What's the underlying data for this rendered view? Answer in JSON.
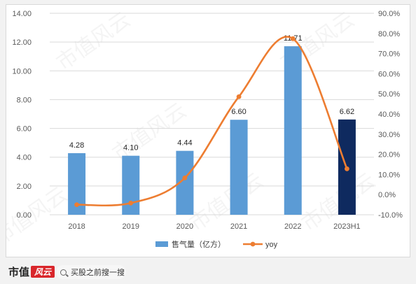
{
  "chart_data": {
    "type": "bar+line",
    "categories": [
      "2018",
      "2019",
      "2020",
      "2021",
      "2022",
      "2023H1"
    ],
    "series": [
      {
        "name": "售气量（亿方）",
        "type": "bar",
        "axis": "left",
        "values": [
          4.28,
          4.1,
          4.44,
          6.6,
          11.71,
          6.62
        ],
        "labels": [
          "4.28",
          "4.10",
          "4.44",
          "6.60",
          "11.71",
          "6.62"
        ],
        "colors": [
          "#5b9bd5",
          "#5b9bd5",
          "#5b9bd5",
          "#5b9bd5",
          "#5b9bd5",
          "#0f2a5f"
        ]
      },
      {
        "name": "yoy",
        "type": "line",
        "axis": "right",
        "values": [
          -5.0,
          -4.2,
          8.3,
          48.6,
          77.4,
          12.8
        ],
        "color": "#ed7d31"
      }
    ],
    "y_left": {
      "min": 0,
      "max": 14,
      "ticks": [
        "0.00",
        "2.00",
        "4.00",
        "6.00",
        "8.00",
        "10.00",
        "12.00",
        "14.00"
      ]
    },
    "y_right": {
      "min": -10,
      "max": 90,
      "ticks": [
        "-10.0%",
        "0.0%",
        "10.0%",
        "20.0%",
        "30.0%",
        "40.0%",
        "50.0%",
        "60.0%",
        "70.0%",
        "80.0%",
        "90.0%"
      ]
    },
    "legend_position": "bottom",
    "grid": true
  },
  "watermark": {
    "text": "市值风云"
  },
  "footer": {
    "logo_text": "市值",
    "logo_mark": "风云",
    "search_text": "买股之前搜一搜"
  }
}
